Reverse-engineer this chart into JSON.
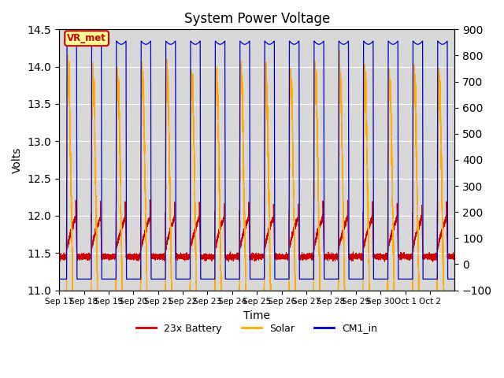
{
  "title": "System Power Voltage",
  "xlabel": "Time",
  "ylabel_left": "Volts",
  "ylim_left": [
    11.0,
    14.5
  ],
  "ylim_right": [
    -100,
    900
  ],
  "yticks_left": [
    11.0,
    11.5,
    12.0,
    12.5,
    13.0,
    13.5,
    14.0,
    14.5
  ],
  "yticks_right": [
    -100,
    0,
    100,
    200,
    300,
    400,
    500,
    600,
    700,
    800,
    900
  ],
  "annotation_text": "VR_met",
  "annotation_color": "#cc0000",
  "battery_color": "#cc0000",
  "solar_color": "#ffaa00",
  "cm1_color": "#0000cc",
  "background_color": "#d8d8d8",
  "plot_bg_light": "#ececec",
  "legend_labels": [
    "23x Battery",
    "Solar",
    "CM1_in"
  ],
  "grid_color": "#ffffff",
  "xtick_labels": [
    "Sep 17",
    "Sep 18",
    "Sep 19",
    "Sep 20",
    "Sep 21",
    "Sep 22",
    "Sep 23",
    "Sep 24",
    "Sep 25",
    "Sep 26",
    "Sep 27",
    "Sep 28",
    "Sep 29",
    "Sep 30",
    "Oct 1",
    "Oct 2"
  ],
  "n_days": 16,
  "n_points": 8000,
  "dawn": 0.3,
  "dusk": 0.72,
  "battery_night": 11.45,
  "battery_peak": 12.25,
  "solar_peak": 13.9,
  "solar_night": 12.5,
  "cm1_high": 14.35,
  "cm1_low": 11.15
}
